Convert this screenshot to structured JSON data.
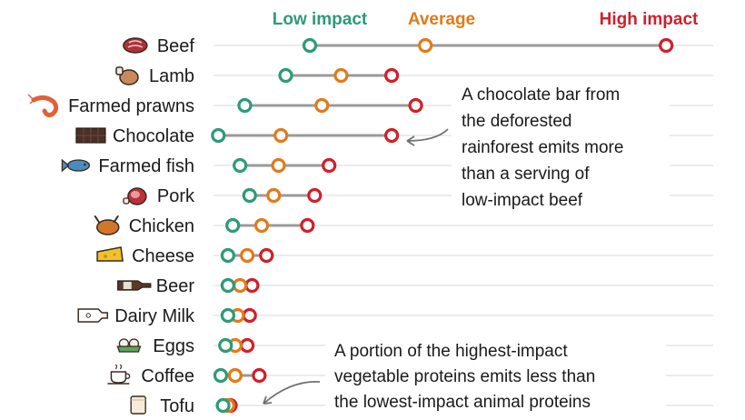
{
  "chart_data": {
    "type": "dot-range",
    "legend": [
      {
        "key": "low",
        "label": "Low impact",
        "color": "#2e9a78"
      },
      {
        "key": "avg",
        "label": "Average",
        "color": "#e07b1a"
      },
      {
        "key": "high",
        "label": "High impact",
        "color": "#d11f2b"
      }
    ],
    "xlim": [
      0,
      100
    ],
    "grid": true,
    "foods": [
      {
        "name": "Beef",
        "icon": "steak-icon",
        "low": 20.0,
        "avg": 44.0,
        "high": 94.0
      },
      {
        "name": "Lamb",
        "icon": "lamb-leg-icon",
        "low": 15.0,
        "avg": 26.5,
        "high": 37.0
      },
      {
        "name": "Farmed prawns",
        "icon": "prawn-icon",
        "low": 6.5,
        "avg": 22.5,
        "high": 42.0
      },
      {
        "name": "Chocolate",
        "icon": "chocolate-bar-icon",
        "low": 1.0,
        "avg": 14.0,
        "high": 37.0
      },
      {
        "name": "Farmed fish",
        "icon": "fish-icon",
        "low": 5.5,
        "avg": 13.5,
        "high": 24.0
      },
      {
        "name": "Pork",
        "icon": "ham-icon",
        "low": 7.5,
        "avg": 12.5,
        "high": 21.0
      },
      {
        "name": "Chicken",
        "icon": "roast-chicken-icon",
        "low": 4.0,
        "avg": 10.0,
        "high": 19.5
      },
      {
        "name": "Cheese",
        "icon": "cheese-icon",
        "low": 3.0,
        "avg": 7.0,
        "high": 11.0
      },
      {
        "name": "Beer",
        "icon": "beer-bottle-icon",
        "low": 3.0,
        "avg": 5.5,
        "high": 8.0
      },
      {
        "name": "Dairy Milk",
        "icon": "milk-bottle-icon",
        "low": 3.0,
        "avg": 5.0,
        "high": 7.5
      },
      {
        "name": "Eggs",
        "icon": "eggs-icon",
        "low": 2.5,
        "avg": 4.5,
        "high": 7.0
      },
      {
        "name": "Coffee",
        "icon": "coffee-cup-icon",
        "low": 1.5,
        "avg": 4.5,
        "high": 9.5
      },
      {
        "name": "Tofu",
        "icon": "tofu-icon",
        "low": 2.0,
        "avg": 3.0,
        "high": 3.5
      }
    ],
    "annotations": [
      {
        "lines": [
          "A chocolate bar from",
          "the deforested",
          "rainforest emits more",
          "than a serving of",
          "low-impact beef"
        ],
        "points_to": "Chocolate"
      },
      {
        "lines": [
          "A portion of the highest-impact",
          "vegetable proteins emits less than",
          "the lowest-impact animal proteins"
        ],
        "points_to": "Tofu"
      }
    ]
  }
}
